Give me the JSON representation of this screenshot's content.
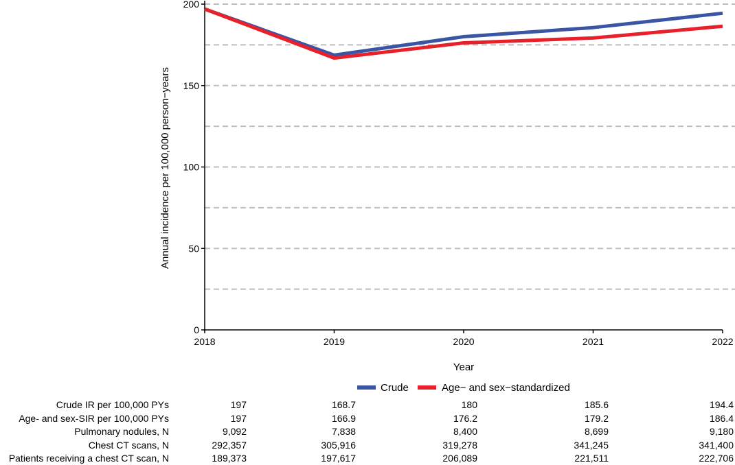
{
  "chart_data": {
    "type": "line",
    "x": [
      2018,
      2019,
      2020,
      2021,
      2022
    ],
    "xlabel": "Year",
    "ylabel": "Annual incidence per 100,000 person−years",
    "ylim": [
      0,
      200
    ],
    "yticks": [
      0,
      50,
      100,
      150,
      200
    ],
    "grid": "horizontal dashed, every 25",
    "legend_position": "bottom",
    "series": [
      {
        "name": "Crude",
        "color": "#3a55a4",
        "values": [
          197,
          168.7,
          180,
          185.6,
          194.4
        ]
      },
      {
        "name": "Age− and sex−standardized",
        "color": "#e8202a",
        "values": [
          197,
          166.9,
          176.2,
          179.2,
          186.4
        ]
      }
    ]
  },
  "table": {
    "rows": [
      {
        "label": "Crude IR per 100,000 PYs",
        "cells": [
          "197",
          "168.7",
          "180",
          "185.6",
          "194.4"
        ]
      },
      {
        "label": "Age- and sex-SIR per 100,000 PYs",
        "cells": [
          "197",
          "166.9",
          "176.2",
          "179.2",
          "186.4"
        ]
      },
      {
        "label": "Pulmonary nodules, N",
        "cells": [
          "9,092",
          "7,838",
          "8,400",
          "8,699",
          "9,180"
        ]
      },
      {
        "label": "Chest CT scans, N",
        "cells": [
          "292,357",
          "305,916",
          "319,278",
          "341,245",
          "341,400"
        ]
      },
      {
        "label": "Patients receiving a chest CT scan, N",
        "cells": [
          "189,373",
          "197,617",
          "206,089",
          "221,511",
          "222,706"
        ]
      }
    ]
  }
}
